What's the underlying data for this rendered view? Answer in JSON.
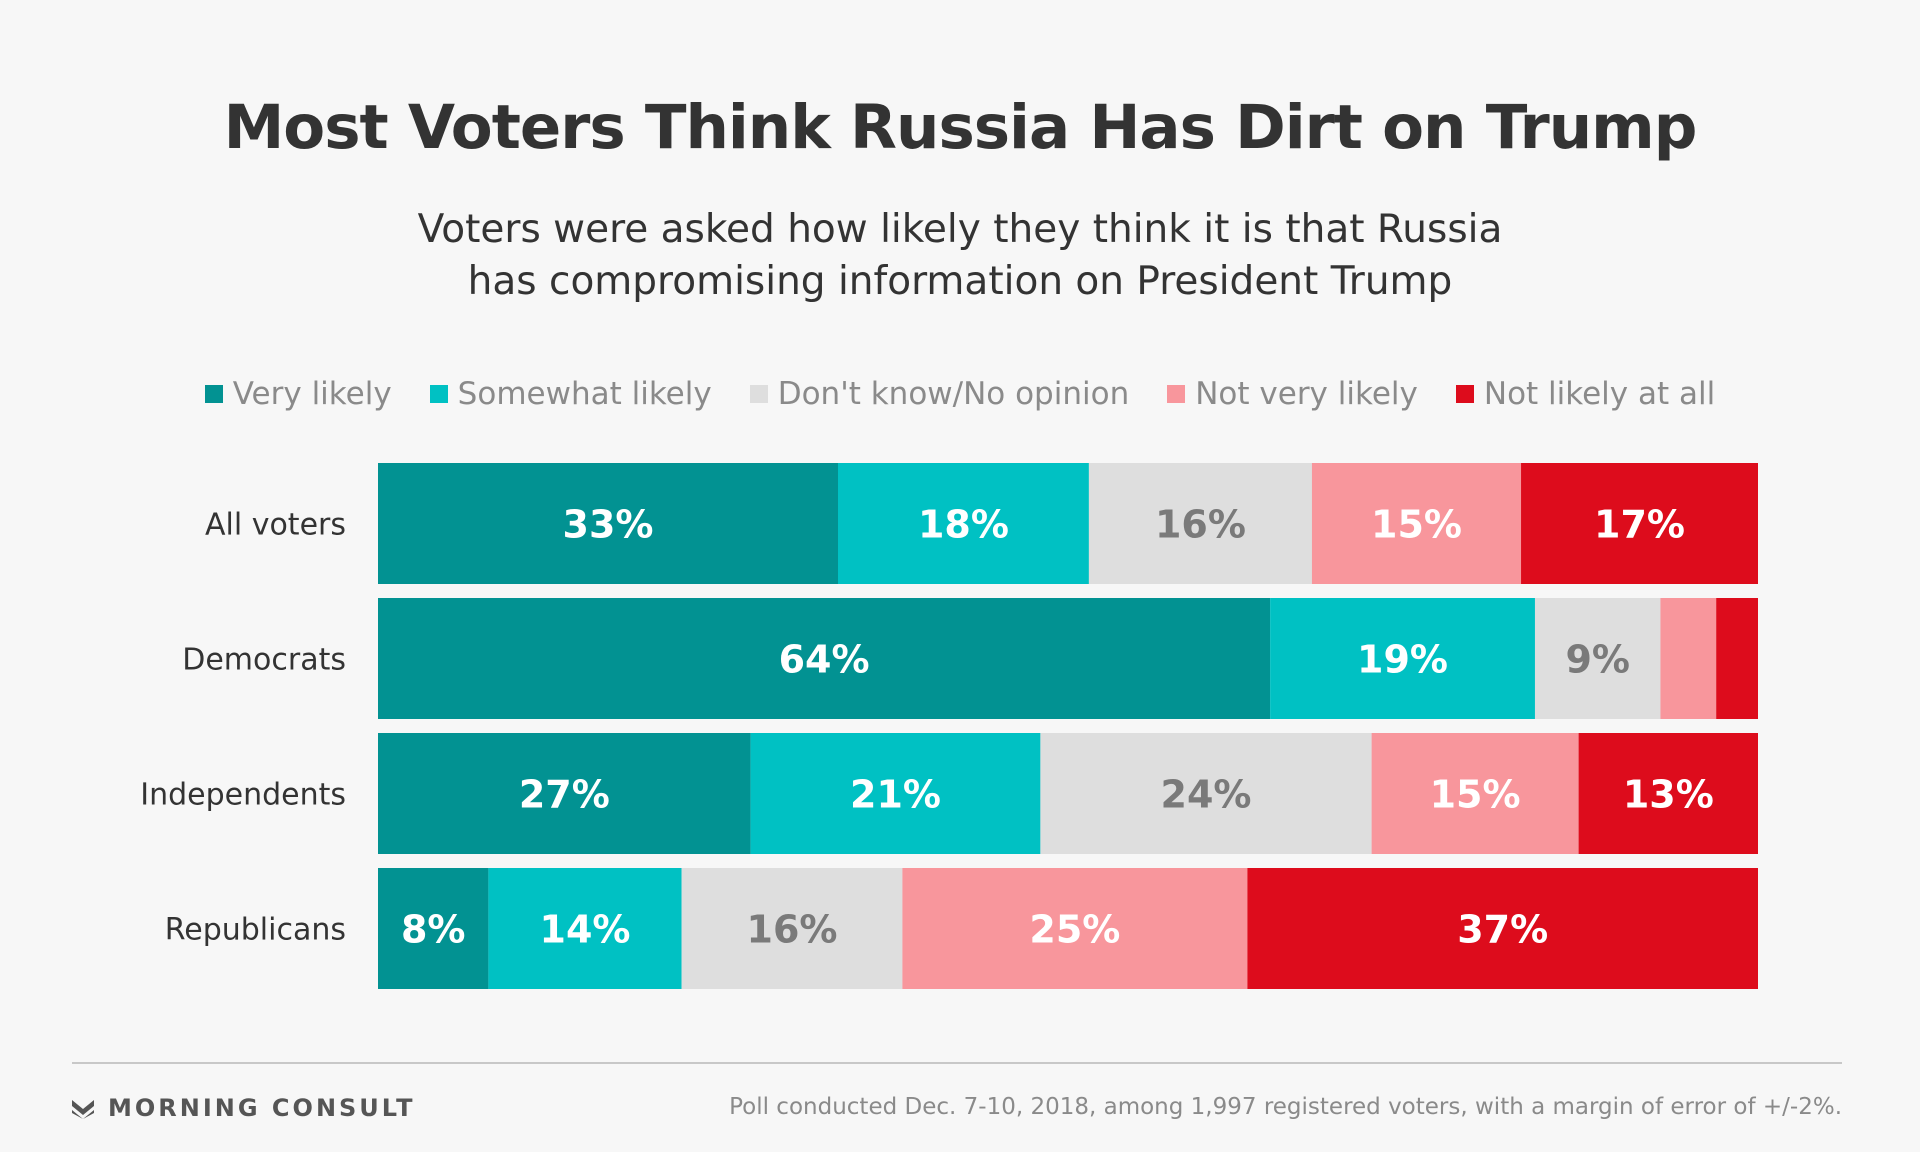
{
  "title": "Most Voters Think Russia Has Dirt on Trump",
  "subtitle_lines": [
    "Voters were asked how likely they think it is that Russia",
    "has compromising information on President Trump"
  ],
  "colors": {
    "very_likely": "#029292",
    "somewhat_likely": "#00c1c3",
    "dont_know": "#dedede",
    "not_very_likely": "#f8969c",
    "not_likely_at_all": "#dd0c1c"
  },
  "chart_data": {
    "type": "bar",
    "orientation": "horizontal",
    "stacked": true,
    "categories": [
      "All voters",
      "Democrats",
      "Independents",
      "Republicans"
    ],
    "series": [
      {
        "name": "Very likely",
        "color": "#029292",
        "label_color": "#ffffff",
        "values": [
          33,
          64,
          27,
          8
        ]
      },
      {
        "name": "Somewhat likely",
        "color": "#00c1c3",
        "label_color": "#ffffff",
        "values": [
          18,
          19,
          21,
          14
        ]
      },
      {
        "name": "Don't know/No opinion",
        "color": "#dedede",
        "label_color": "#7a7a7a",
        "values": [
          16,
          9,
          24,
          16
        ]
      },
      {
        "name": "Not very likely",
        "color": "#f8969c",
        "label_color": "#ffffff",
        "values": [
          15,
          4,
          15,
          25
        ]
      },
      {
        "name": "Not likely at all",
        "color": "#dd0c1c",
        "label_color": "#ffffff",
        "values": [
          17,
          3,
          13,
          37
        ]
      }
    ],
    "data_labels": [
      [
        "33%",
        "18%",
        "16%",
        "15%",
        "17%"
      ],
      [
        "64%",
        "19%",
        "9%",
        "",
        ""
      ],
      [
        "27%",
        "21%",
        "24%",
        "15%",
        "13%"
      ],
      [
        "8%",
        "14%",
        "16%",
        "25%",
        "37%"
      ]
    ],
    "legend_position": "top",
    "grid": false
  },
  "footer": {
    "brand": "MORNING CONSULT",
    "source": "Poll conducted Dec. 7-10, 2018, among 1,997 registered voters, with a margin of error of +/-2%."
  }
}
